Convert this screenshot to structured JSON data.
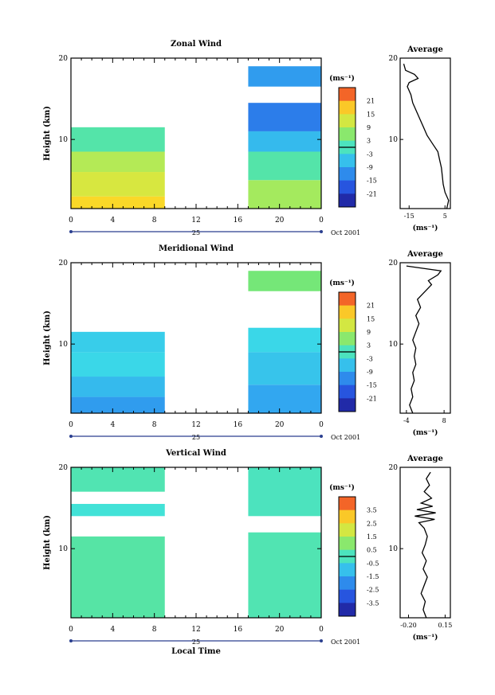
{
  "chart_data": [
    {
      "type": "heatmap",
      "title": "Zonal Wind",
      "ylabel": "Height (km)",
      "yticks": [
        10,
        20
      ],
      "ylim": [
        1.5,
        20
      ],
      "xticks": [
        "0",
        "4",
        "8",
        "12",
        "16",
        "20",
        "0"
      ],
      "xlim": [
        0,
        24
      ],
      "date_center": "25",
      "date_right": "Oct 2001",
      "colorbar": {
        "unit": "(ms⁻¹)",
        "ticks": [
          "21",
          "15",
          "9",
          "3",
          "-3",
          "-9",
          "-15",
          "-21"
        ],
        "range": [
          -24,
          24
        ]
      },
      "data_gaps_hours": [
        [
          9,
          17
        ]
      ],
      "bands": [
        {
          "x": [
            0,
            9
          ],
          "y": [
            1.5,
            3.0
          ],
          "value": 15
        },
        {
          "x": [
            0,
            9
          ],
          "y": [
            3.0,
            6.0
          ],
          "value": 11
        },
        {
          "x": [
            0,
            9
          ],
          "y": [
            6.0,
            8.5
          ],
          "value": 8
        },
        {
          "x": [
            0,
            9
          ],
          "y": [
            8.5,
            11.5
          ],
          "value": 1
        },
        {
          "x": [
            17,
            24
          ],
          "y": [
            1.5,
            5.0
          ],
          "value": 7
        },
        {
          "x": [
            17,
            24
          ],
          "y": [
            5.0,
            8.5
          ],
          "value": 1
        },
        {
          "x": [
            17,
            24
          ],
          "y": [
            8.5,
            11.0
          ],
          "value": -6
        },
        {
          "x": [
            17,
            24
          ],
          "y": [
            11.0,
            14.5
          ],
          "value": -12
        },
        {
          "x": [
            17,
            24
          ],
          "y": [
            16.5,
            19.0
          ],
          "value": -9
        }
      ],
      "average": {
        "title": "Average",
        "xlabel": "(ms⁻¹)",
        "xticks": [
          -15,
          5
        ],
        "xlim": [
          -20,
          8
        ],
        "yticks": [
          10,
          20
        ],
        "profile": [
          [
            6,
            1.5
          ],
          [
            7,
            2.5
          ],
          [
            5,
            3.5
          ],
          [
            4,
            4.5
          ],
          [
            3.5,
            5.5
          ],
          [
            3,
            6.5
          ],
          [
            2,
            7.5
          ],
          [
            1,
            8.5
          ],
          [
            -2,
            9.5
          ],
          [
            -5,
            10.5
          ],
          [
            -7,
            11.5
          ],
          [
            -9,
            12.5
          ],
          [
            -11,
            13.5
          ],
          [
            -13,
            14.5
          ],
          [
            -14,
            15.5
          ],
          [
            -16,
            16.5
          ],
          [
            -15,
            17.0
          ],
          [
            -10,
            17.5
          ],
          [
            -12,
            18.0
          ],
          [
            -17,
            18.5
          ],
          [
            -18,
            19.3
          ]
        ]
      }
    },
    {
      "type": "heatmap",
      "title": "Meridional Wind",
      "ylabel": "Height (km)",
      "yticks": [
        10,
        20
      ],
      "ylim": [
        1.5,
        20
      ],
      "xticks": [
        "0",
        "4",
        "8",
        "12",
        "16",
        "20",
        "0"
      ],
      "xlim": [
        0,
        24
      ],
      "date_center": "25",
      "date_right": "Oct 2001",
      "colorbar": {
        "unit": "(ms⁻¹)",
        "ticks": [
          "21",
          "15",
          "9",
          "3",
          "-3",
          "-9",
          "-15",
          "-21"
        ],
        "range": [
          -24,
          24
        ]
      },
      "data_gaps_hours": [
        [
          9,
          17
        ]
      ],
      "bands": [
        {
          "x": [
            0,
            9
          ],
          "y": [
            1.5,
            3.5
          ],
          "value": -9
        },
        {
          "x": [
            0,
            9
          ],
          "y": [
            3.5,
            6.0
          ],
          "value": -6
        },
        {
          "x": [
            0,
            9
          ],
          "y": [
            6.0,
            9.0
          ],
          "value": -3
        },
        {
          "x": [
            0,
            9
          ],
          "y": [
            9.0,
            11.5
          ],
          "value": -4
        },
        {
          "x": [
            17,
            24
          ],
          "y": [
            1.5,
            5.0
          ],
          "value": -8
        },
        {
          "x": [
            17,
            24
          ],
          "y": [
            5.0,
            9.0
          ],
          "value": -5
        },
        {
          "x": [
            17,
            24
          ],
          "y": [
            9.0,
            12.0
          ],
          "value": -3
        },
        {
          "x": [
            17,
            24
          ],
          "y": [
            16.5,
            19.0
          ],
          "value": 4
        }
      ],
      "average": {
        "title": "Average",
        "xlabel": "(ms⁻¹)",
        "xticks": [
          -4,
          8
        ],
        "xlim": [
          -6,
          10
        ],
        "yticks": [
          10,
          20
        ],
        "profile": [
          [
            -2,
            1.5
          ],
          [
            -3,
            2.5
          ],
          [
            -2,
            3.5
          ],
          [
            -2.5,
            4.5
          ],
          [
            -1.5,
            5.5
          ],
          [
            -2,
            6.5
          ],
          [
            -1,
            7.5
          ],
          [
            -1.5,
            8.5
          ],
          [
            -1,
            9.5
          ],
          [
            -2,
            10.5
          ],
          [
            -1,
            11.5
          ],
          [
            0,
            12.5
          ],
          [
            -1,
            13.5
          ],
          [
            0.5,
            14.5
          ],
          [
            -0.5,
            15.5
          ],
          [
            2,
            16.5
          ],
          [
            4,
            17.3
          ],
          [
            3,
            17.8
          ],
          [
            6,
            18.5
          ],
          [
            7,
            19.0
          ],
          [
            -4,
            19.6
          ]
        ]
      }
    },
    {
      "type": "heatmap",
      "title": "Vertical Wind",
      "ylabel": "Height (km)",
      "xlabel": "Local Time",
      "yticks": [
        10,
        20
      ],
      "ylim": [
        1.5,
        20
      ],
      "xticks": [
        "0",
        "4",
        "8",
        "12",
        "16",
        "20",
        "0"
      ],
      "xlim": [
        0,
        24
      ],
      "date_center": "25",
      "date_right": "Oct 2001",
      "colorbar": {
        "unit": "(ms⁻¹)",
        "ticks": [
          "3.5",
          "2.5",
          "1.5",
          "0.5",
          "-0.5",
          "-1.5",
          "-2.5",
          "-3.5"
        ],
        "range": [
          -4,
          4
        ]
      },
      "data_gaps_hours": [
        [
          9,
          17
        ]
      ],
      "bands": [
        {
          "x": [
            0,
            9
          ],
          "y": [
            1.5,
            11.5
          ],
          "value": 0.2
        },
        {
          "x": [
            0,
            9
          ],
          "y": [
            14.0,
            15.5
          ],
          "value": -0.2
        },
        {
          "x": [
            0,
            9
          ],
          "y": [
            17.0,
            20.0
          ],
          "value": 0.1
        },
        {
          "x": [
            17,
            24
          ],
          "y": [
            1.5,
            12.0
          ],
          "value": 0.1
        },
        {
          "x": [
            17,
            24
          ],
          "y": [
            14.0,
            20.0
          ],
          "value": 0.0
        }
      ],
      "average": {
        "title": "Average",
        "xlabel": "(ms⁻¹)",
        "xticks": [
          "-0.20",
          "0.15"
        ],
        "xlim": [
          -0.28,
          0.2
        ],
        "yticks": [
          10,
          20
        ],
        "profile": [
          [
            -0.03,
            1.5
          ],
          [
            -0.06,
            2.5
          ],
          [
            -0.04,
            3.5
          ],
          [
            -0.08,
            4.5
          ],
          [
            -0.05,
            5.5
          ],
          [
            -0.02,
            6.5
          ],
          [
            -0.06,
            7.5
          ],
          [
            -0.03,
            8.5
          ],
          [
            -0.07,
            9.5
          ],
          [
            -0.04,
            10.5
          ],
          [
            -0.02,
            11.5
          ],
          [
            -0.05,
            12.5
          ],
          [
            -0.1,
            13.2
          ],
          [
            0.05,
            13.6
          ],
          [
            -0.14,
            14.0
          ],
          [
            0.06,
            14.4
          ],
          [
            -0.12,
            14.8
          ],
          [
            0.03,
            15.2
          ],
          [
            -0.08,
            15.6
          ],
          [
            0.02,
            16.2
          ],
          [
            -0.05,
            17.0
          ],
          [
            0.0,
            17.8
          ],
          [
            -0.03,
            18.6
          ],
          [
            0.01,
            19.4
          ]
        ]
      }
    }
  ]
}
